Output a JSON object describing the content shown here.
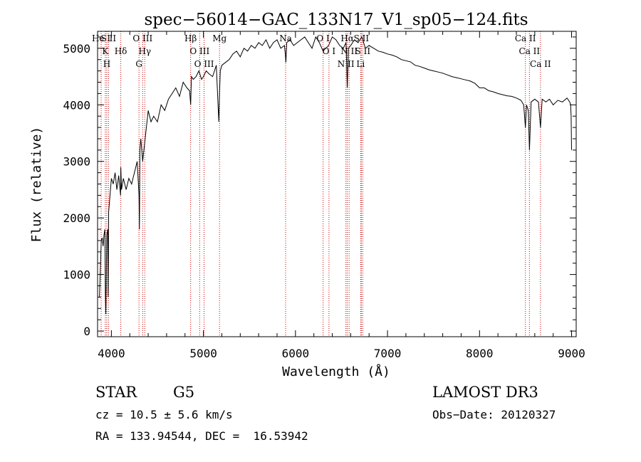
{
  "chart_data": {
    "type": "line",
    "title": "spec−56014−GAC_133N17_V1_sp05−124.fits",
    "xlabel": "Wavelength (Å)",
    "ylabel": "Flux (relative)",
    "xlim": [
      3850,
      9050
    ],
    "ylim": [
      -100,
      5300
    ],
    "xticks": [
      4000,
      5000,
      6000,
      7000,
      8000,
      9000
    ],
    "xtick_labels": [
      "4000",
      "5000",
      "6000",
      "7000",
      "8000",
      "9000"
    ],
    "yticks": [
      0,
      1000,
      2000,
      3000,
      4000,
      5000
    ],
    "ytick_labels": [
      "0",
      "1000",
      "2000",
      "3000",
      "4000",
      "5000"
    ],
    "grid": false,
    "line_color": "#000000",
    "marker_line_color": "#cc0000",
    "series": [
      {
        "x": [
          3870,
          3880,
          3890,
          3900,
          3910,
          3920,
          3930,
          3935,
          3940,
          3950,
          3960,
          3965,
          3970,
          3980,
          3990,
          4000,
          4020,
          4040,
          4060,
          4080,
          4100,
          4102,
          4110,
          4130,
          4160,
          4190,
          4220,
          4250,
          4280,
          4300,
          4305,
          4310,
          4320,
          4340,
          4360,
          4380,
          4400,
          4430,
          4460,
          4500,
          4540,
          4580,
          4620,
          4660,
          4700,
          4740,
          4780,
          4820,
          4850,
          4861,
          4870,
          4890,
          4920,
          4950,
          4980,
          5000,
          5030,
          5060,
          5100,
          5140,
          5167,
          5175,
          5183,
          5200,
          5240,
          5280,
          5320,
          5360,
          5400,
          5440,
          5480,
          5520,
          5560,
          5600,
          5640,
          5680,
          5720,
          5760,
          5800,
          5840,
          5880,
          5890,
          5896,
          5905,
          5940,
          5980,
          6020,
          6060,
          6100,
          6140,
          6180,
          6220,
          6260,
          6300,
          6360,
          6400,
          6440,
          6480,
          6520,
          6550,
          6563,
          6575,
          6600,
          6640,
          6680,
          6720,
          6760,
          6800,
          6850,
          6900,
          6950,
          7000,
          7050,
          7100,
          7150,
          7200,
          7250,
          7300,
          7350,
          7400,
          7450,
          7500,
          7550,
          7600,
          7650,
          7700,
          7750,
          7800,
          7850,
          7900,
          7950,
          8000,
          8050,
          8100,
          8150,
          8200,
          8250,
          8300,
          8350,
          8400,
          8450,
          8480,
          8498,
          8510,
          8530,
          8542,
          8560,
          8600,
          8640,
          8662,
          8680,
          8720,
          8760,
          8800,
          8850,
          8900,
          8950,
          8980,
          8990,
          8995,
          9000
        ],
        "y": [
          600,
          1100,
          1600,
          1650,
          1500,
          1700,
          1800,
          600,
          300,
          1700,
          1800,
          600,
          2100,
          2300,
          2500,
          2700,
          2600,
          2800,
          2500,
          2750,
          2400,
          2900,
          2500,
          2700,
          2500,
          2700,
          2600,
          2800,
          3000,
          2400,
          1800,
          3200,
          3400,
          3000,
          3300,
          3600,
          3900,
          3700,
          3800,
          3700,
          4000,
          3900,
          4100,
          4200,
          4300,
          4150,
          4400,
          4300,
          4250,
          4000,
          4500,
          4450,
          4500,
          4600,
          4450,
          4500,
          4600,
          4550,
          4500,
          4700,
          3700,
          4200,
          4600,
          4700,
          4750,
          4800,
          4900,
          4950,
          4850,
          5000,
          4950,
          5050,
          5000,
          5100,
          5050,
          5150,
          5000,
          5100,
          5150,
          5000,
          5050,
          4900,
          4750,
          5100,
          5150,
          5050,
          5100,
          5150,
          5200,
          5100,
          5000,
          5200,
          5100,
          4950,
          5050,
          5200,
          5150,
          5050,
          5000,
          5100,
          4300,
          5000,
          5050,
          5150,
          5100,
          5200,
          5000,
          5050,
          5000,
          4950,
          4930,
          4900,
          4880,
          4850,
          4800,
          4780,
          4760,
          4700,
          4680,
          4650,
          4620,
          4600,
          4580,
          4560,
          4530,
          4500,
          4480,
          4460,
          4440,
          4420,
          4380,
          4300,
          4300,
          4250,
          4230,
          4200,
          4180,
          4160,
          4150,
          4120,
          4080,
          4000,
          3600,
          4000,
          3900,
          3200,
          4050,
          4100,
          4050,
          3600,
          4100,
          4050,
          4100,
          4000,
          4080,
          4050,
          4120,
          4050,
          4000,
          3800,
          3200
        ]
      }
    ],
    "line_markers": [
      {
        "x": 3889,
        "label": "He I"
      },
      {
        "x": 3934,
        "label": "K"
      },
      {
        "x": 3950,
        "label": "H"
      },
      {
        "x": 3969,
        "label": "S II"
      },
      {
        "x": 4102,
        "label": "Hδ"
      },
      {
        "x": 4300,
        "label": "G"
      },
      {
        "x": 4340,
        "label": "O III"
      },
      {
        "x": 4363,
        "label": "Hγ"
      },
      {
        "x": 4861,
        "label": "Hβ"
      },
      {
        "x": 4959,
        "label": "O III"
      },
      {
        "x": 5007,
        "label": "O III"
      },
      {
        "x": 5175,
        "label": "Mg"
      },
      {
        "x": 5893,
        "label": "Na"
      },
      {
        "x": 6300,
        "label": "O I"
      },
      {
        "x": 6364,
        "label": "O I"
      },
      {
        "x": 6548,
        "label": "N II"
      },
      {
        "x": 6563,
        "label": "Hα"
      },
      {
        "x": 6583,
        "label": "N II"
      },
      {
        "x": 6708,
        "label": "Li"
      },
      {
        "x": 6716,
        "label": "S II"
      },
      {
        "x": 6731,
        "label": "S II"
      },
      {
        "x": 8498,
        "label": "Ca II"
      },
      {
        "x": 8542,
        "label": "Ca II"
      },
      {
        "x": 8662,
        "label": "Ca II"
      }
    ]
  },
  "info": {
    "class_label": "STAR",
    "subclass": "G5",
    "cz_line": "cz = 10.5 ± 5.6 km/s",
    "coords_line": "RA = 133.94544, DEC =  16.53942",
    "survey": "LAMOST DR3",
    "obs_date": "Obs−Date: 20120327"
  }
}
